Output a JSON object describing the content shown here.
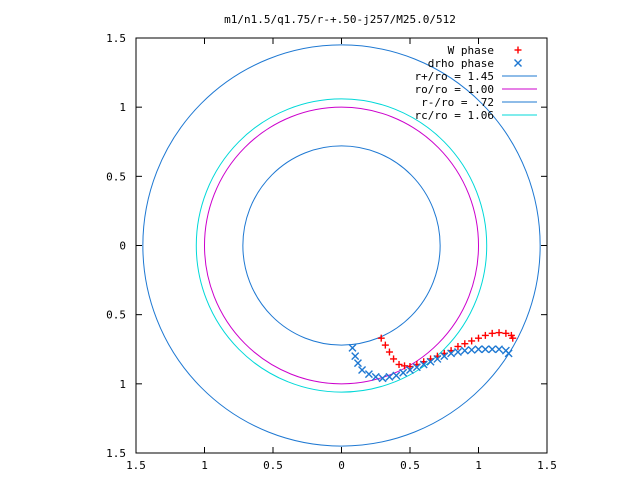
{
  "chart_data": {
    "type": "scatter",
    "title": "m1/n1.5/q1.75/r-+.50-j257/M25.0/512",
    "xlabel": "",
    "ylabel": "",
    "xlim": [
      -1.5,
      1.5
    ],
    "ylim": [
      -1.5,
      1.5
    ],
    "x_ticks": [
      -1.5,
      -1,
      -0.5,
      0,
      0.5,
      1,
      1.5
    ],
    "x_tick_labels": [
      "1.5",
      "1",
      "0.5",
      "0",
      "0.5",
      "1",
      "1.5"
    ],
    "y_ticks": [
      1.5,
      1,
      0.5,
      0,
      -0.5,
      -1,
      -1.5
    ],
    "y_tick_labels": [
      "1.5",
      "1",
      "0.5",
      "0",
      "0.5",
      "1",
      "1.5"
    ],
    "grid": false,
    "legend_position": "top-right",
    "series": [
      {
        "name": "W phase",
        "kind": "points",
        "marker": "plus",
        "color": "#ff0000",
        "x": [
          0.29,
          0.32,
          0.35,
          0.38,
          0.42,
          0.46,
          0.5,
          0.55,
          0.6,
          0.65,
          0.7,
          0.75,
          0.8,
          0.85,
          0.9,
          0.95,
          1.0,
          1.05,
          1.1,
          1.15,
          1.2,
          1.24,
          1.25
        ],
        "y": [
          -0.67,
          -0.72,
          -0.77,
          -0.82,
          -0.86,
          -0.87,
          -0.875,
          -0.86,
          -0.84,
          -0.82,
          -0.8,
          -0.78,
          -0.76,
          -0.73,
          -0.71,
          -0.69,
          -0.67,
          -0.65,
          -0.635,
          -0.63,
          -0.635,
          -0.65,
          -0.67
        ]
      },
      {
        "name": "drho phase",
        "kind": "points",
        "marker": "cross",
        "color": "#1e78d2",
        "x": [
          0.08,
          0.1,
          0.12,
          0.15,
          0.2,
          0.25,
          0.3,
          0.35,
          0.4,
          0.45,
          0.5,
          0.55,
          0.6,
          0.65,
          0.7,
          0.75,
          0.8,
          0.85,
          0.9,
          0.95,
          1.0,
          1.05,
          1.1,
          1.15,
          1.2,
          1.22
        ],
        "y": [
          -0.74,
          -0.8,
          -0.85,
          -0.9,
          -0.93,
          -0.95,
          -0.96,
          -0.95,
          -0.94,
          -0.92,
          -0.9,
          -0.88,
          -0.86,
          -0.84,
          -0.82,
          -0.8,
          -0.78,
          -0.77,
          -0.76,
          -0.755,
          -0.75,
          -0.75,
          -0.75,
          -0.75,
          -0.76,
          -0.78
        ]
      },
      {
        "name": "r+/ro = 1.45",
        "kind": "circle",
        "r": 1.45,
        "color": "#1e78d2"
      },
      {
        "name": "ro/ro = 1.00",
        "kind": "circle",
        "r": 1.0,
        "color": "#cc00cc"
      },
      {
        "name": "r-/ro = .72",
        "kind": "circle",
        "r": 0.72,
        "color": "#1e78d2"
      },
      {
        "name": "rc/ro = 1.06",
        "kind": "circle",
        "r": 1.06,
        "color": "#00d8d8"
      }
    ]
  }
}
